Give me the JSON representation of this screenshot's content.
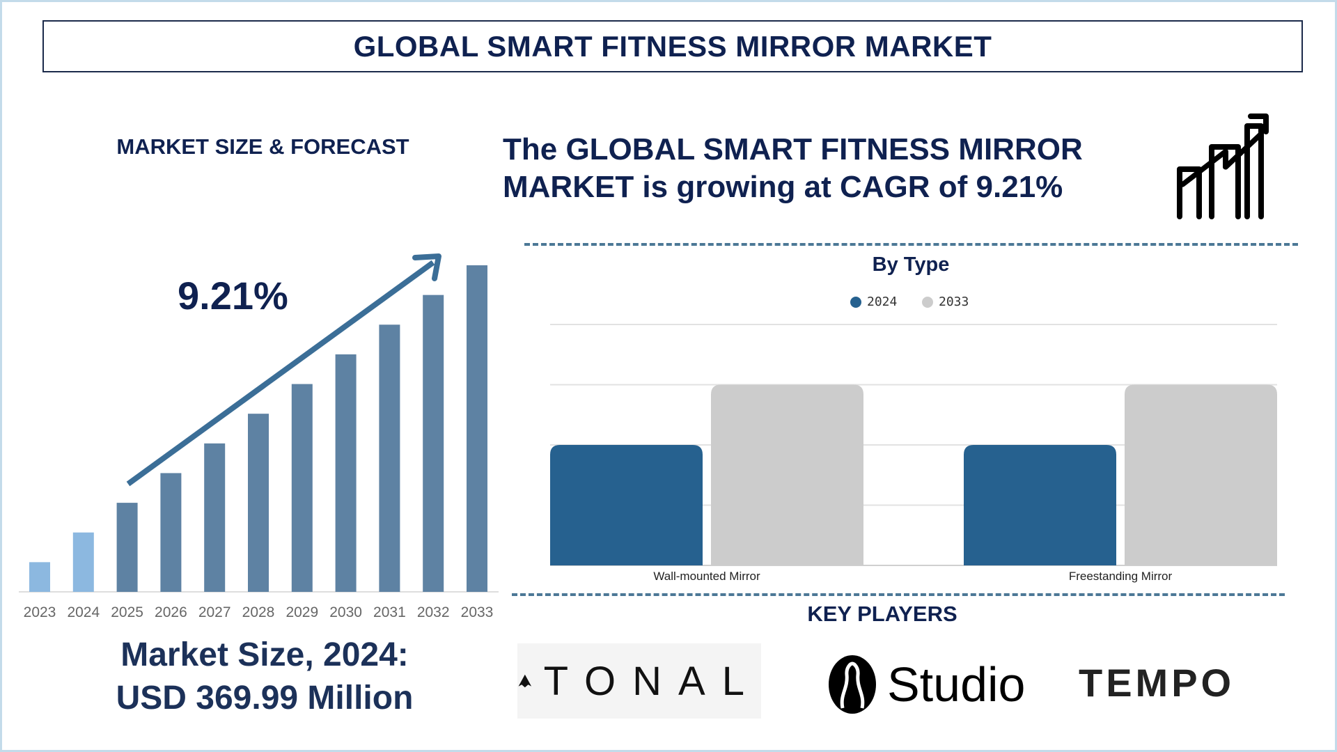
{
  "header": {
    "title": "GLOBAL SMART FITNESS MIRROR MARKET"
  },
  "left": {
    "subheading": "MARKET SIZE & FORECAST",
    "cagr_label": "9.21%",
    "market_size_line1": "Market Size, 2024:",
    "market_size_line2": "USD 369.99 Million"
  },
  "headline": {
    "line1": "The GLOBAL SMART FITNESS MIRROR",
    "line2": "MARKET is growing at CAGR of 9.21%",
    "icon": "growth-chart-icon"
  },
  "key_players": {
    "title": "KEY PLAYERS",
    "logos": [
      "TONAL",
      "Studio",
      "TEMPO"
    ]
  },
  "chart_data": [
    {
      "type": "bar",
      "categories": [
        "2023",
        "2024",
        "2025",
        "2026",
        "2027",
        "2028",
        "2029",
        "2030",
        "2031",
        "2032",
        "2033"
      ],
      "values": [
        1,
        2,
        3,
        4,
        5,
        6,
        7,
        8,
        9,
        10,
        11
      ],
      "historical_color": "#8cb8e0",
      "forecast_color": "#5e82a3",
      "historical_categories": [
        "2023",
        "2024"
      ],
      "annotation": "9.21%",
      "grid": false
    },
    {
      "type": "bar",
      "title": "By Type",
      "categories": [
        "Wall-mounted Mirror",
        "Freestanding Mirror"
      ],
      "series": [
        {
          "name": "2024",
          "values": [
            2,
            2
          ],
          "color": "#26618f"
        },
        {
          "name": "2033",
          "values": [
            3,
            3
          ],
          "color": "#cccccc"
        }
      ],
      "ylim": [
        0,
        4
      ],
      "grid": true,
      "legend": "top"
    }
  ]
}
